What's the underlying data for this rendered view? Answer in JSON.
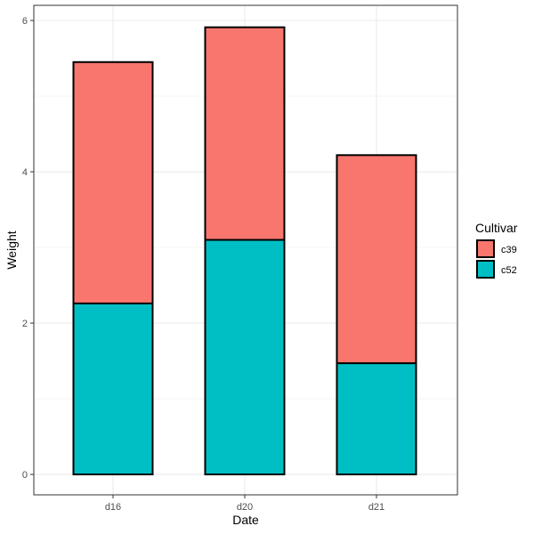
{
  "chart_data": {
    "type": "bar",
    "stacked": true,
    "categories": [
      "d16",
      "d20",
      "d21"
    ],
    "series": [
      {
        "name": "c52",
        "values": [
          2.26,
          3.1,
          1.47
        ],
        "color": "#00BFC4"
      },
      {
        "name": "c39",
        "values": [
          3.19,
          2.81,
          2.75
        ],
        "color": "#F8766D"
      }
    ],
    "totals": [
      5.45,
      5.91,
      4.22
    ],
    "xlabel": "Date",
    "ylabel": "Weight",
    "ylim": [
      -0.27,
      6.2
    ],
    "yticks": [
      0,
      2,
      4,
      6
    ],
    "grid": true,
    "legend": {
      "title": "Cultivar",
      "placement": "right",
      "order": [
        "c39",
        "c52"
      ]
    },
    "bar_outline_color": "#000000",
    "panel_border_color": "#333333",
    "grid_color": "#ebebeb"
  }
}
